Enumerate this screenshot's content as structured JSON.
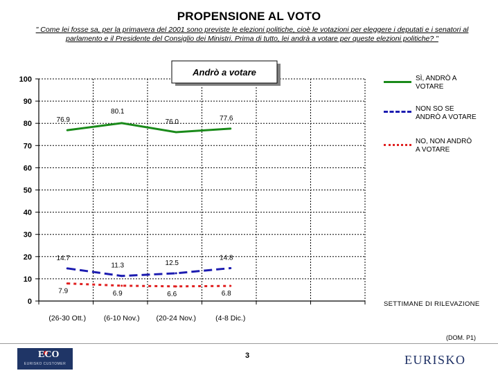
{
  "header": {
    "title": "PROPENSIONE AL VOTO",
    "question_line1": "\" Come lei fosse sa, per la primavera del 2001 sono previste le elezioni politiche, cioè le votazioni per eleggere i deputati e i senatori al",
    "question_line2": "parlamento e il Presidente del Consiglio dei Ministri. Prima di tutto, lei andrà a votare per queste elezioni politiche? \""
  },
  "chart_data": {
    "type": "line",
    "title": "Andrò a votare",
    "categories": [
      "(26-30 Ott.)",
      "(6-10 Nov.)",
      "(20-24 Nov.)",
      "(4-8 Dic.)"
    ],
    "xlabel": "SETTIMANE DI RILEVAZIONE",
    "ylim": [
      0,
      100
    ],
    "yticks": [
      0,
      10,
      20,
      30,
      40,
      50,
      60,
      70,
      80,
      90,
      100
    ],
    "grid": true,
    "legend_position": "right",
    "series": [
      {
        "name": "SÌ, ANDRÒ A VOTARE",
        "values": [
          76.9,
          80.1,
          76.0,
          77.6
        ],
        "labels": [
          "76.9",
          "80.1",
          "76.0",
          "77.6"
        ],
        "color": "#1a8a1a",
        "style": "solid"
      },
      {
        "name": "NON SO SE ANDRÒ A VOTARE",
        "values": [
          14.7,
          11.3,
          12.5,
          14.8
        ],
        "labels": [
          "14.7",
          "11.3",
          "12.5",
          "14.8"
        ],
        "color": "#1c1cb0",
        "style": "dash"
      },
      {
        "name": "NO, NON ANDRÒ A VOTARE",
        "values": [
          7.9,
          6.9,
          6.6,
          6.8
        ],
        "labels": [
          "7.9",
          "6.9",
          "6.6",
          "6.8"
        ],
        "color": "#e02020",
        "style": "dot"
      }
    ]
  },
  "legend": {
    "yes_line1": "SÌ, ANDRÒ A",
    "yes_line2": "VOTARE",
    "unsure_line1": "NON SO SE",
    "unsure_line2": "ANDRÒ A VOTARE",
    "no_line1": "NO, NON ANDRÒ",
    "no_line2": "A VOTARE"
  },
  "footer": {
    "source": "(DOM. P1)",
    "page_number": "3",
    "eco_logo_text": "ECO",
    "eco_logo_subtext": "EURISKO CUSTOMER",
    "eurisko_logo_text": "EURISKO"
  }
}
